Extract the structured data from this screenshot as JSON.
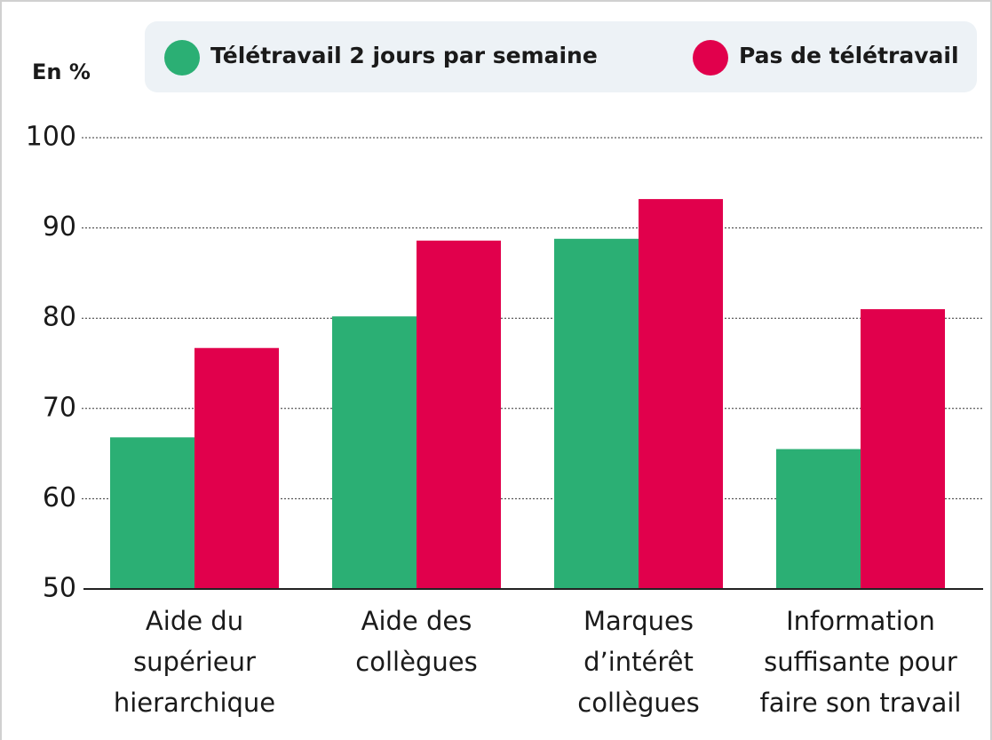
{
  "chart_data": {
    "type": "bar",
    "y_label": "En %",
    "categories": [
      "Aide du\nsupérieur\nhierarchique",
      "Aide des\ncollègues",
      "Marques\nd’intérêt\ncollègues",
      "Information\nsuffisante pour\nfaire son travail"
    ],
    "series": [
      {
        "name": "Télétravail 2 jours par semaine",
        "color": "#2baf74",
        "values": [
          66.8,
          80.2,
          88.8,
          65.5
        ]
      },
      {
        "name": "Pas de télétravail",
        "color": "#e1004c",
        "values": [
          76.7,
          88.6,
          93.2,
          81.0
        ]
      }
    ],
    "ylim": [
      50,
      100
    ],
    "yticks": [
      50,
      60,
      70,
      80,
      90,
      100
    ],
    "grid": true
  }
}
